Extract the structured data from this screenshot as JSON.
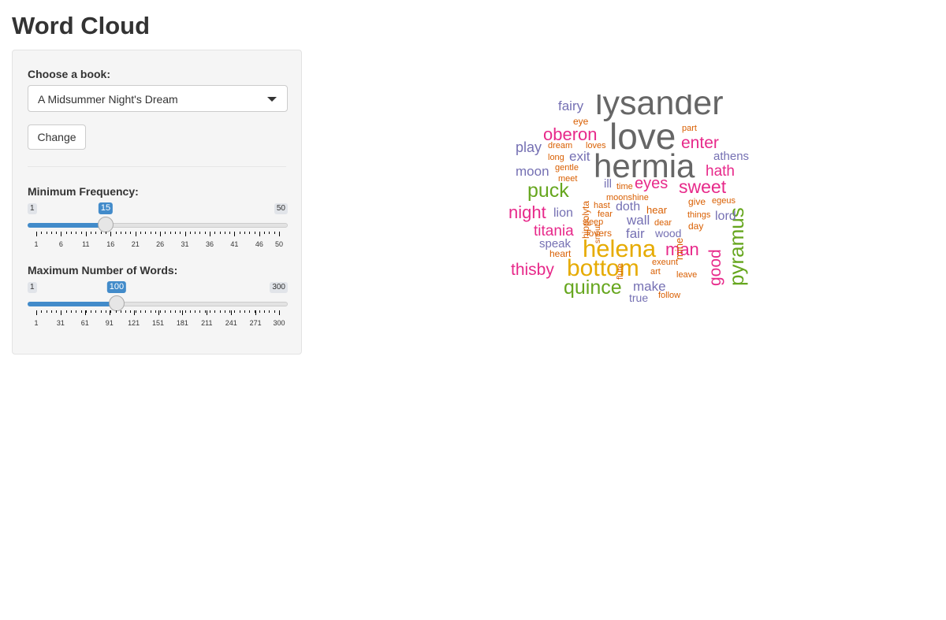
{
  "page": {
    "title": "Word Cloud"
  },
  "sidebar": {
    "book_label": "Choose a book:",
    "book_selected": "A Midsummer Night's Dream",
    "change_button": "Change",
    "min_freq": {
      "label": "Minimum Frequency:",
      "min": "1",
      "max": "50",
      "value": "15",
      "value_num": 15,
      "min_num": 1,
      "max_num": 50,
      "ticks": [
        "1",
        "6",
        "11",
        "16",
        "21",
        "26",
        "31",
        "36",
        "41",
        "46",
        "50"
      ],
      "tick_values": [
        1,
        6,
        11,
        16,
        21,
        26,
        31,
        36,
        41,
        46,
        50
      ]
    },
    "max_words": {
      "label": "Maximum Number of Words:",
      "min": "1",
      "max": "300",
      "value": "100",
      "value_num": 100,
      "min_num": 1,
      "max_num": 300,
      "ticks": [
        "1",
        "31",
        "61",
        "91",
        "121",
        "151",
        "181",
        "211",
        "241",
        "271",
        "300"
      ],
      "tick_values": [
        1,
        31,
        61,
        91,
        121,
        151,
        181,
        211,
        241,
        271,
        300
      ]
    }
  },
  "colors": {
    "accent": "#428bca"
  },
  "wordcloud": [
    {
      "text": "lysander",
      "color": "#666666"
    },
    {
      "text": "love",
      "color": "#666666"
    },
    {
      "text": "hermia",
      "color": "#666666"
    },
    {
      "text": "helena",
      "color": "#e6ab02"
    },
    {
      "text": "bottom",
      "color": "#e6ab02"
    },
    {
      "text": "pyramus",
      "color": "#66a61e"
    },
    {
      "text": "quince",
      "color": "#66a61e"
    },
    {
      "text": "puck",
      "color": "#66a61e"
    },
    {
      "text": "sweet",
      "color": "#e7298a"
    },
    {
      "text": "oberon",
      "color": "#e7298a"
    },
    {
      "text": "enter",
      "color": "#e7298a"
    },
    {
      "text": "hath",
      "color": "#e7298a"
    },
    {
      "text": "eyes",
      "color": "#e7298a"
    },
    {
      "text": "night",
      "color": "#e7298a"
    },
    {
      "text": "titania",
      "color": "#e7298a"
    },
    {
      "text": "thisby",
      "color": "#e7298a"
    },
    {
      "text": "man",
      "color": "#e7298a"
    },
    {
      "text": "good",
      "color": "#e7298a"
    },
    {
      "text": "fairy",
      "color": "#7570b3"
    },
    {
      "text": "play",
      "color": "#7570b3"
    },
    {
      "text": "moon",
      "color": "#7570b3"
    },
    {
      "text": "exit",
      "color": "#7570b3"
    },
    {
      "text": "athens",
      "color": "#7570b3"
    },
    {
      "text": "lion",
      "color": "#7570b3"
    },
    {
      "text": "doth",
      "color": "#7570b3"
    },
    {
      "text": "wall",
      "color": "#7570b3"
    },
    {
      "text": "lord",
      "color": "#7570b3"
    },
    {
      "text": "fair",
      "color": "#7570b3"
    },
    {
      "text": "wood",
      "color": "#7570b3"
    },
    {
      "text": "speak",
      "color": "#7570b3"
    },
    {
      "text": "make",
      "color": "#7570b3"
    },
    {
      "text": "true",
      "color": "#7570b3"
    },
    {
      "text": "ill",
      "color": "#7570b3"
    },
    {
      "text": "eye",
      "color": "#d95f02"
    },
    {
      "text": "part",
      "color": "#d95f02"
    },
    {
      "text": "dream",
      "color": "#d95f02"
    },
    {
      "text": "loves",
      "color": "#d95f02"
    },
    {
      "text": "long",
      "color": "#d95f02"
    },
    {
      "text": "gentle",
      "color": "#d95f02"
    },
    {
      "text": "meet",
      "color": "#d95f02"
    },
    {
      "text": "hippolyta",
      "color": "#d95f02"
    },
    {
      "text": "snout",
      "color": "#d95f02"
    },
    {
      "text": "time",
      "color": "#d95f02"
    },
    {
      "text": "moonshine",
      "color": "#d95f02"
    },
    {
      "text": "hast",
      "color": "#d95f02"
    },
    {
      "text": "fear",
      "color": "#d95f02"
    },
    {
      "text": "sleep",
      "color": "#d95f02"
    },
    {
      "text": "flute",
      "color": "#d95f02"
    },
    {
      "text": "hear",
      "color": "#d95f02"
    },
    {
      "text": "mine",
      "color": "#d95f02"
    },
    {
      "text": "give",
      "color": "#d95f02"
    },
    {
      "text": "egeus",
      "color": "#d95f02"
    },
    {
      "text": "things",
      "color": "#d95f02"
    },
    {
      "text": "dear",
      "color": "#d95f02"
    },
    {
      "text": "day",
      "color": "#d95f02"
    },
    {
      "text": "lovers",
      "color": "#d95f02"
    },
    {
      "text": "heart",
      "color": "#d95f02"
    },
    {
      "text": "exeunt",
      "color": "#d95f02"
    },
    {
      "text": "art",
      "color": "#d95f02"
    },
    {
      "text": "leave",
      "color": "#d95f02"
    },
    {
      "text": "follow",
      "color": "#d95f02"
    }
  ]
}
